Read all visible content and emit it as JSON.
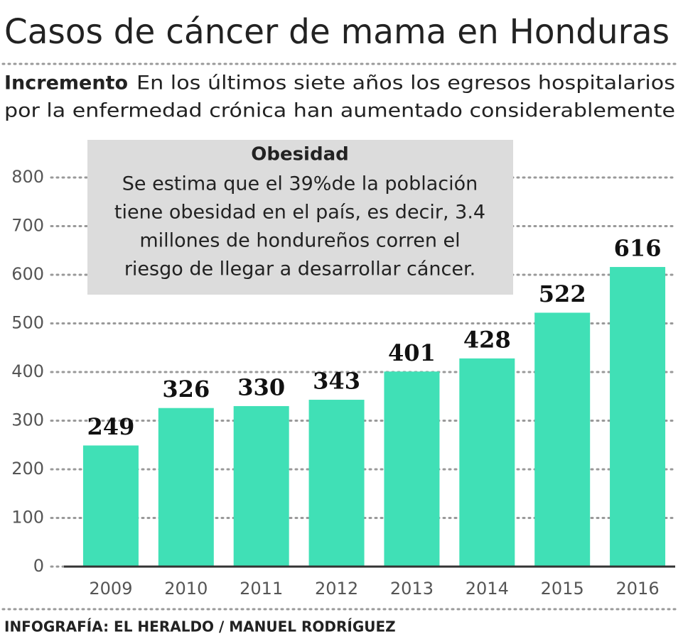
{
  "chart_data": {
    "type": "bar",
    "title": "Casos de cáncer de mama en Honduras",
    "subtitle_lead": "Incremento",
    "subtitle_lines": [
      "En los últimos siete años los egresos hospitalarios",
      "por la enfermedad crónica han aumentado considerablemente"
    ],
    "annotation": {
      "title": "Obesidad",
      "lines": [
        "Se estima que el 39%de la población",
        "tiene obesidad en el país, es decir, 3.4",
        "millones de hondureños corren el",
        "riesgo de llegar a desarrollar cáncer."
      ]
    },
    "categories": [
      "2009",
      "2010",
      "2011",
      "2012",
      "2013",
      "2014",
      "2015",
      "2016"
    ],
    "values": [
      249,
      326,
      330,
      343,
      401,
      428,
      522,
      616
    ],
    "color": "#40e0b6",
    "ylim": [
      0,
      800
    ],
    "yticks": [
      0,
      100,
      200,
      300,
      400,
      500,
      600,
      700,
      800
    ],
    "grid": true,
    "source": "INFOGRAFÍA: EL HERALDO / MANUEL RODRÍGUEZ"
  }
}
